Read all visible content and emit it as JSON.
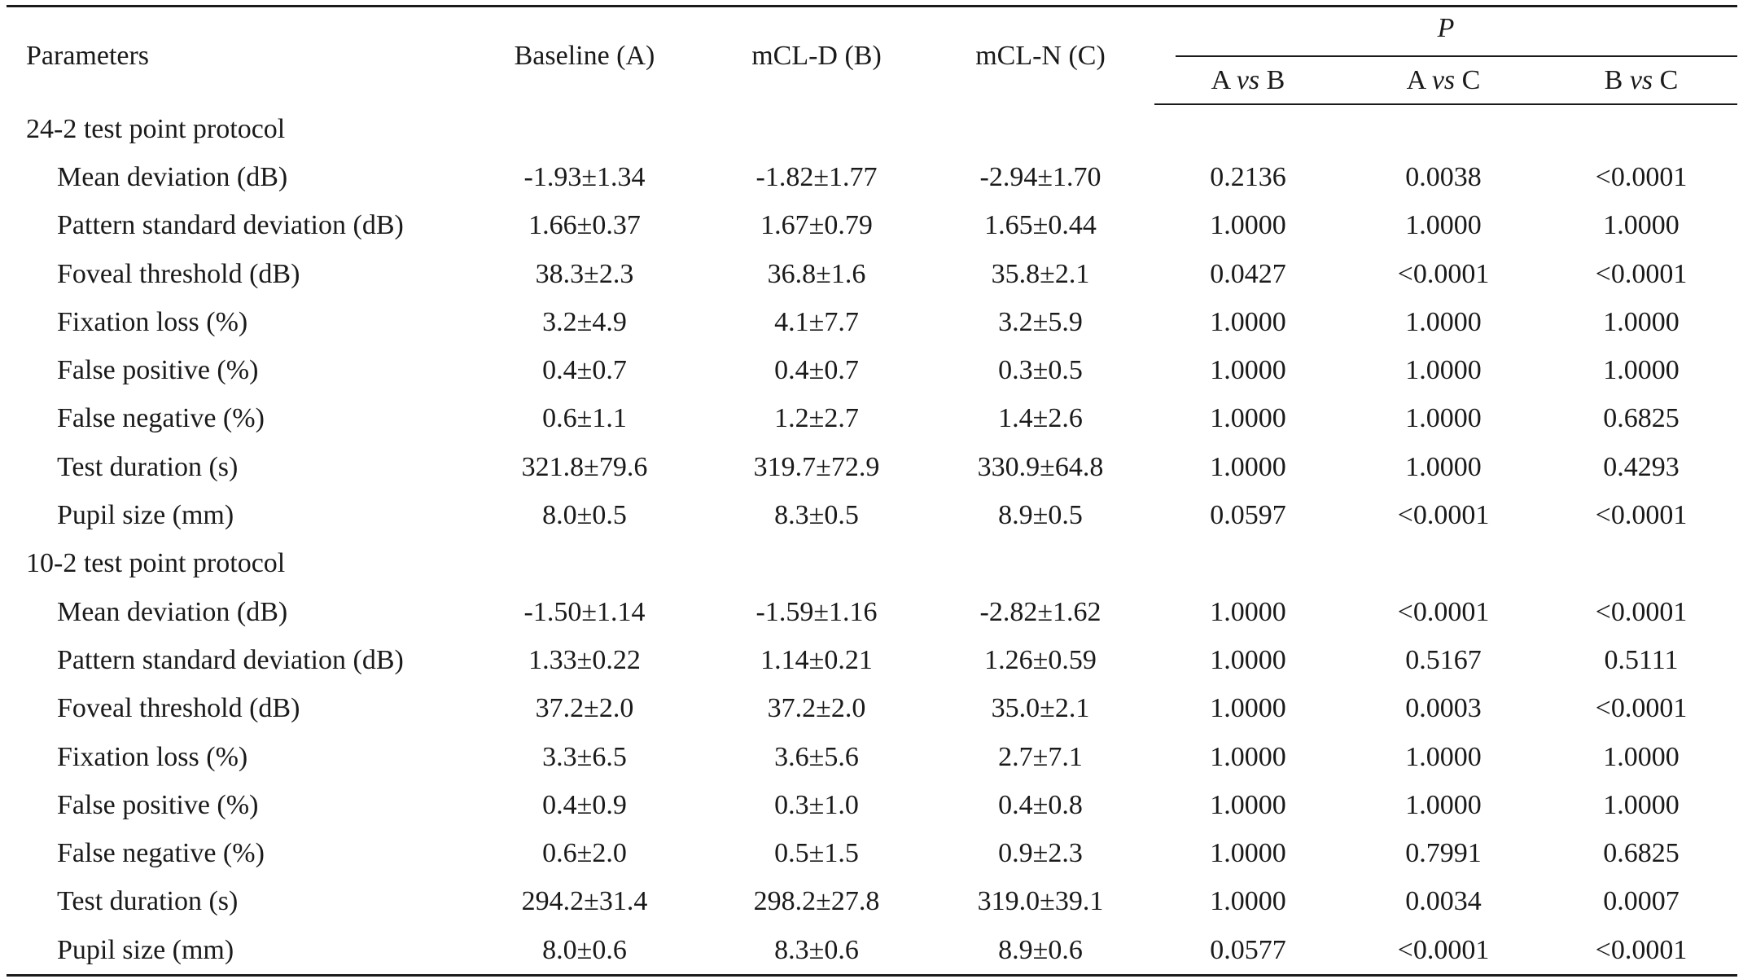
{
  "header": {
    "parameters": "Parameters",
    "baseline": "Baseline (A)",
    "mcld": "mCL-D (B)",
    "mcln": "mCL-N (C)",
    "p_label": "P",
    "a_vs_b": {
      "left": "A ",
      "vs": "vs",
      "right": " B"
    },
    "a_vs_c": {
      "left": "A ",
      "vs": "vs",
      "right": " C"
    },
    "b_vs_c": {
      "left": "B ",
      "vs": "vs",
      "right": " C"
    }
  },
  "sections": [
    {
      "title": "24-2 test point protocol",
      "rows": [
        {
          "label": "Mean deviation (dB)",
          "a": "-1.93±1.34",
          "b": "-1.82±1.77",
          "c": "-2.94±1.70",
          "ab": "0.2136",
          "ac": "0.0038",
          "bc": "<0.0001"
        },
        {
          "label": "Pattern standard deviation (dB)",
          "a": "1.66±0.37",
          "b": "1.67±0.79",
          "c": "1.65±0.44",
          "ab": "1.0000",
          "ac": "1.0000",
          "bc": "1.0000"
        },
        {
          "label": "Foveal threshold (dB)",
          "a": "38.3±2.3",
          "b": "36.8±1.6",
          "c": "35.8±2.1",
          "ab": "0.0427",
          "ac": "<0.0001",
          "bc": "<0.0001"
        },
        {
          "label": "Fixation loss (%)",
          "a": "3.2±4.9",
          "b": "4.1±7.7",
          "c": "3.2±5.9",
          "ab": "1.0000",
          "ac": "1.0000",
          "bc": "1.0000"
        },
        {
          "label": "False positive (%)",
          "a": "0.4±0.7",
          "b": "0.4±0.7",
          "c": "0.3±0.5",
          "ab": "1.0000",
          "ac": "1.0000",
          "bc": "1.0000"
        },
        {
          "label": "False negative (%)",
          "a": "0.6±1.1",
          "b": "1.2±2.7",
          "c": "1.4±2.6",
          "ab": "1.0000",
          "ac": "1.0000",
          "bc": "0.6825"
        },
        {
          "label": "Test duration (s)",
          "a": "321.8±79.6",
          "b": "319.7±72.9",
          "c": "330.9±64.8",
          "ab": "1.0000",
          "ac": "1.0000",
          "bc": "0.4293"
        },
        {
          "label": "Pupil size (mm)",
          "a": "8.0±0.5",
          "b": "8.3±0.5",
          "c": "8.9±0.5",
          "ab": "0.0597",
          "ac": "<0.0001",
          "bc": "<0.0001"
        }
      ]
    },
    {
      "title": "10-2 test point protocol",
      "rows": [
        {
          "label": "Mean deviation (dB)",
          "a": "-1.50±1.14",
          "b": "-1.59±1.16",
          "c": "-2.82±1.62",
          "ab": "1.0000",
          "ac": "<0.0001",
          "bc": "<0.0001"
        },
        {
          "label": "Pattern standard deviation (dB)",
          "a": "1.33±0.22",
          "b": "1.14±0.21",
          "c": "1.26±0.59",
          "ab": "1.0000",
          "ac": "0.5167",
          "bc": "0.5111"
        },
        {
          "label": "Foveal threshold (dB)",
          "a": "37.2±2.0",
          "b": "37.2±2.0",
          "c": "35.0±2.1",
          "ab": "1.0000",
          "ac": "0.0003",
          "bc": "<0.0001"
        },
        {
          "label": "Fixation loss (%)",
          "a": "3.3±6.5",
          "b": "3.6±5.6",
          "c": "2.7±7.1",
          "ab": "1.0000",
          "ac": "1.0000",
          "bc": "1.0000"
        },
        {
          "label": "False positive (%)",
          "a": "0.4±0.9",
          "b": "0.3±1.0",
          "c": "0.4±0.8",
          "ab": "1.0000",
          "ac": "1.0000",
          "bc": "1.0000"
        },
        {
          "label": "False negative (%)",
          "a": "0.6±2.0",
          "b": "0.5±1.5",
          "c": "0.9±2.3",
          "ab": "1.0000",
          "ac": "0.7991",
          "bc": "0.6825"
        },
        {
          "label": "Test duration (s)",
          "a": "294.2±31.4",
          "b": "298.2±27.8",
          "c": "319.0±39.1",
          "ab": "1.0000",
          "ac": "0.0034",
          "bc": "0.0007"
        },
        {
          "label": "Pupil size (mm)",
          "a": "8.0±0.6",
          "b": "8.3±0.6",
          "c": "8.9±0.6",
          "ab": "0.0577",
          "ac": "<0.0001",
          "bc": "<0.0001"
        }
      ]
    }
  ]
}
